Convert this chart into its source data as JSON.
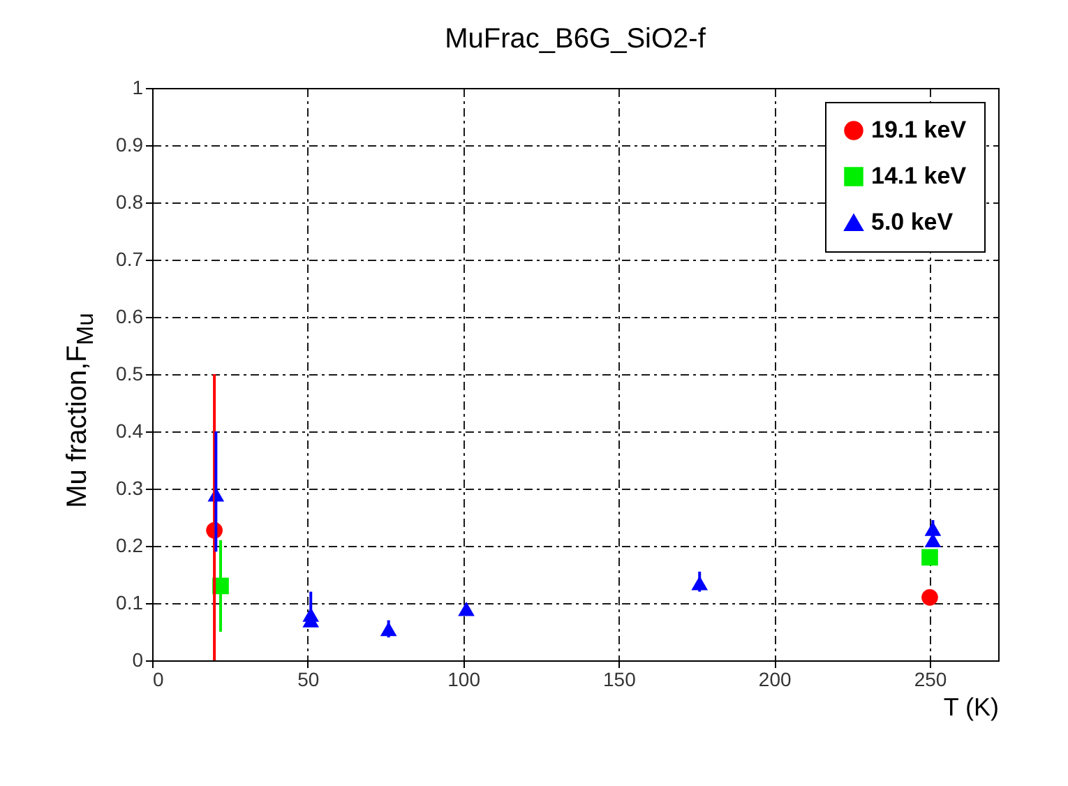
{
  "chart_data": {
    "type": "scatter",
    "title": "MuFrac_B6G_SiO2-f",
    "xlabel": "T (K)",
    "ylabel": "Mu fraction,F$_{Mu}$",
    "xlim": [
      0,
      272
    ],
    "xticks": [
      0,
      50,
      100,
      150,
      200,
      250
    ],
    "ylim": [
      0,
      1
    ],
    "yticks": [
      0,
      0.1,
      0.2,
      0.3,
      0.4,
      0.5,
      0.6,
      0.7,
      0.8,
      0.9,
      1
    ],
    "grid": true,
    "legend": "top right",
    "series": [
      {
        "name": "19.1 keV",
        "color": "#ff0000",
        "marker": "circle",
        "x": [
          20,
          250
        ],
        "values": [
          0.227,
          0.11
        ],
        "errors": [
          [
            0,
            0.5
          ],
          null
        ]
      },
      {
        "name": "14.1 keV",
        "color": "#00ee00",
        "marker": "square",
        "x": [
          22,
          250
        ],
        "values": [
          0.13,
          0.18
        ],
        "errors": [
          [
            0.05,
            0.21
          ],
          null
        ]
      },
      {
        "name": "5.0 keV",
        "color": "#0000ff",
        "marker": "triangle",
        "x": [
          20.5,
          51,
          51,
          76,
          101,
          176,
          251,
          251
        ],
        "values": [
          0.29,
          0.08,
          0.07,
          0.055,
          0.09,
          0.135,
          0.23,
          0.21
        ],
        "errors": [
          [
            0.19,
            0.4
          ],
          [
            0.06,
            0.12
          ],
          null,
          [
            0.04,
            0.07
          ],
          [
            0.08,
            0.1
          ],
          [
            0.12,
            0.155
          ],
          [
            0.21,
            0.245
          ],
          null
        ]
      }
    ]
  }
}
